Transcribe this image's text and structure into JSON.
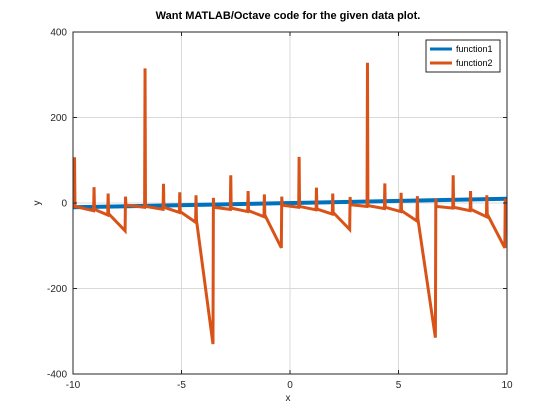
{
  "chart_data": {
    "type": "line",
    "title": "Want MATLAB/Octave code for the given data plot.",
    "xlabel": "x",
    "ylabel": "y",
    "xlim": [
      -10,
      10
    ],
    "ylim": [
      -400,
      400
    ],
    "xticks": [
      -10,
      -5,
      0,
      5,
      10
    ],
    "yticks": [
      -400,
      -200,
      0,
      200,
      400
    ],
    "grid": true,
    "legend_position": "top-right",
    "series": [
      {
        "name": "function1",
        "color": "#0072bd",
        "x": [
          -10,
          10
        ],
        "y": [
          -10,
          10
        ]
      },
      {
        "name": "function2",
        "color": "#d95319",
        "x": [
          -9.95,
          -9.93,
          -9.91,
          -9.05,
          -9.03,
          -9.01,
          -8.4,
          -8.38,
          -8.36,
          -7.6,
          -7.58,
          -7.56,
          -6.7,
          -6.68,
          -6.66,
          -5.85,
          -5.83,
          -5.81,
          -5.1,
          -5.08,
          -5.06,
          -4.35,
          -4.33,
          -4.31,
          -3.55,
          -3.53,
          -3.51,
          -2.75,
          -2.73,
          -2.71,
          -1.95,
          -1.93,
          -1.91,
          -1.2,
          -1.18,
          -1.16,
          -0.4,
          -0.38,
          -0.36,
          0.4,
          0.42,
          0.44,
          1.2,
          1.22,
          1.24,
          1.95,
          1.97,
          1.99,
          2.75,
          2.77,
          2.79,
          3.55,
          3.57,
          3.59,
          4.35,
          4.37,
          4.39,
          5.1,
          5.12,
          5.14,
          5.85,
          5.87,
          5.89,
          6.7,
          6.72,
          6.74,
          7.5,
          7.52,
          7.54,
          8.3,
          8.32,
          8.34,
          9.05,
          9.07,
          9.09,
          9.9,
          9.92,
          9.94
        ],
        "y": [
          -10,
          107,
          -8,
          -18,
          37,
          -15,
          -28,
          22,
          -25,
          -65,
          15,
          -5,
          -10,
          315,
          -8,
          -15,
          45,
          -10,
          -22,
          25,
          -20,
          -45,
          18,
          -40,
          -330,
          12,
          -10,
          -15,
          65,
          -12,
          -20,
          28,
          -18,
          -32,
          20,
          -28,
          -105,
          15,
          -5,
          -10,
          108,
          -8,
          -16,
          36,
          -14,
          -26,
          22,
          -22,
          -62,
          14,
          -4,
          -8,
          328,
          -6,
          -13,
          46,
          -10,
          -20,
          24,
          -18,
          -42,
          16,
          -36,
          -315,
          10,
          -8,
          -12,
          65,
          -10,
          -18,
          28,
          -15,
          -32,
          18,
          -26,
          -105,
          10,
          -5
        ]
      }
    ]
  }
}
